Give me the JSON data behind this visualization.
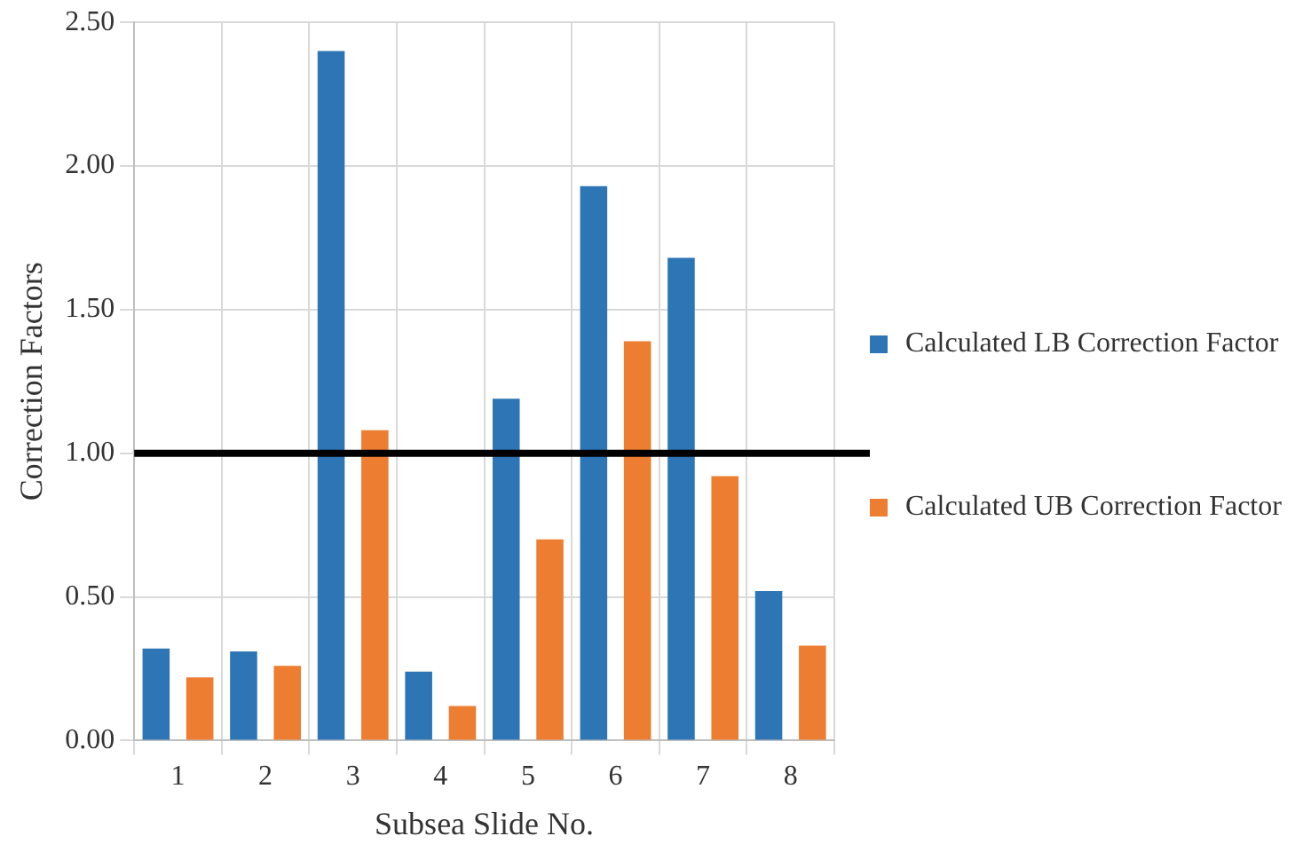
{
  "chart_data": {
    "type": "bar",
    "xlabel": "Subsea Slide No.",
    "ylabel": "Correction Factors",
    "categories": [
      "1",
      "2",
      "3",
      "4",
      "5",
      "6",
      "7",
      "8"
    ],
    "series": [
      {
        "name": "Calculated LB Correction Factor",
        "color": "#2e75b6",
        "values": [
          0.32,
          0.31,
          2.4,
          0.24,
          1.19,
          1.93,
          1.68,
          0.52
        ]
      },
      {
        "name": "Calculated UB Correction Factor",
        "color": "#ed7d31",
        "values": [
          0.22,
          0.26,
          1.08,
          0.12,
          0.7,
          1.39,
          0.92,
          0.33
        ]
      }
    ],
    "ylim": [
      0,
      2.5
    ],
    "yticks": [
      {
        "value": 0,
        "label": "0.00"
      },
      {
        "value": 0.5,
        "label": "0.50"
      },
      {
        "value": 1,
        "label": "1.00"
      },
      {
        "value": 1.5,
        "label": "1.50"
      },
      {
        "value": 2,
        "label": "2.00"
      },
      {
        "value": 2.5,
        "label": "2.50"
      }
    ],
    "grid": true,
    "legend": "right",
    "ref_lines": [
      {
        "axis": "y",
        "value": 1,
        "color": "#000000"
      }
    ]
  }
}
